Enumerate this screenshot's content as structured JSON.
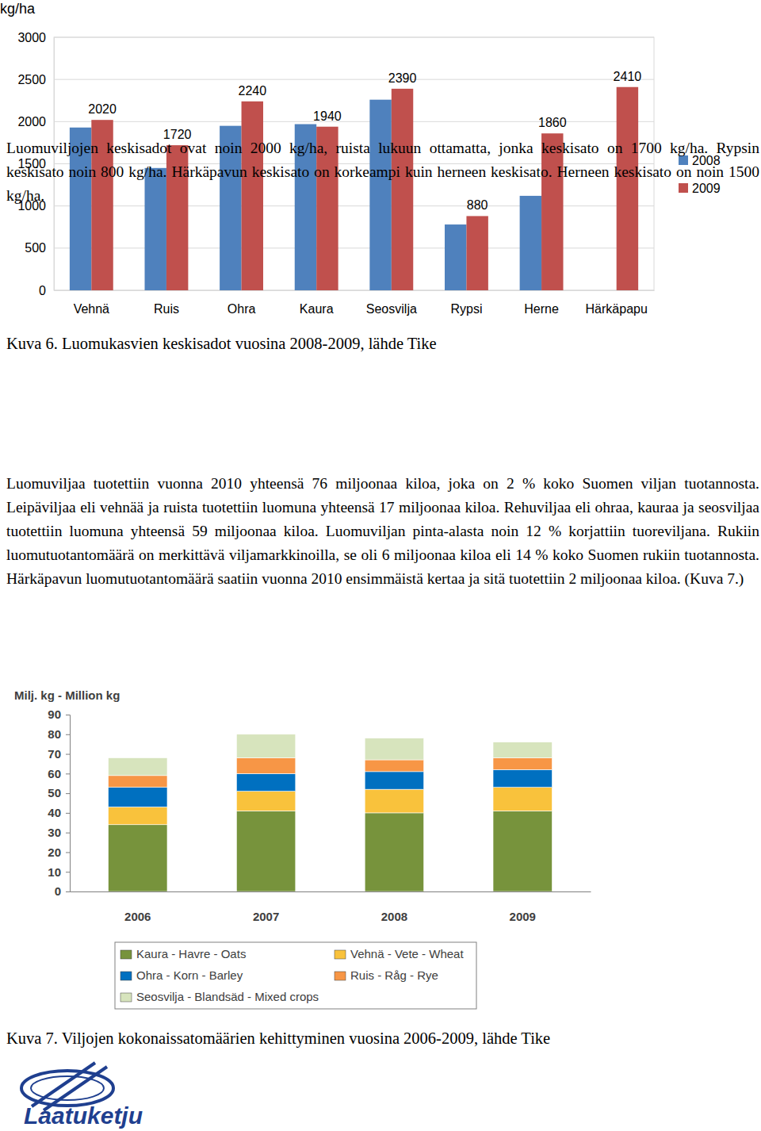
{
  "chart_data": [
    {
      "type": "bar",
      "y_label": "kg/ha",
      "categories": [
        "Vehnä",
        "Ruis",
        "Ohra",
        "Kaura",
        "Seosvilja",
        "Rypsi",
        "Herne",
        "Härkäpapu"
      ],
      "series": [
        {
          "name": "2008",
          "color": "#4f81bd",
          "values": [
            1930,
            1450,
            1950,
            1970,
            2260,
            780,
            1120,
            null
          ]
        },
        {
          "name": "2009",
          "color": "#c0504d",
          "values": [
            2020,
            1720,
            2240,
            1940,
            2390,
            880,
            1860,
            2410
          ],
          "data_labels": true
        }
      ],
      "ylim": [
        0,
        3000
      ],
      "yticks": [
        0,
        500,
        1000,
        1500,
        2000,
        2500,
        3000
      ],
      "grid": true,
      "legend": "right"
    },
    {
      "type": "bar",
      "y_label": "Milj. kg - Million kg",
      "categories": [
        "2006",
        "2007",
        "2008",
        "2009"
      ],
      "stacked": true,
      "series": [
        {
          "name": "Kaura - Havre - Oats",
          "color": "#77933c",
          "values": [
            34,
            41,
            40,
            41
          ]
        },
        {
          "name": "Vehnä - Vete - Wheat",
          "color": "#f9c23c",
          "values": [
            9,
            10,
            12,
            12
          ]
        },
        {
          "name": "Ohra - Korn - Barley",
          "color": "#0070c0",
          "values": [
            10,
            9,
            9,
            9
          ]
        },
        {
          "name": "Ruis - Råg - Rye",
          "color": "#f79646",
          "values": [
            6,
            8,
            6,
            6
          ]
        },
        {
          "name": "Seosvilja - Blandsäd - Mixed crops",
          "color": "#d7e4bd",
          "values": [
            9,
            12,
            11,
            8
          ]
        }
      ],
      "ylim": [
        0,
        90
      ],
      "yticks": [
        0,
        10,
        20,
        30,
        40,
        50,
        60,
        70,
        80,
        90
      ],
      "grid": false,
      "legend": "bottom"
    }
  ],
  "document": {
    "captions": [
      "Kuva 6. Luomukasvien keskisadot vuosina 2008-2009, lähde Tike",
      "Kuva 7. Viljojen kokonaissatomäärien kehittyminen vuosina 2006-2009, lähde Tike"
    ],
    "paragraphs": [
      "Luomuviljojen keskisadot ovat noin 2000 kg/ha, ruista lukuun ottamatta, jonka keskisato on 1700 kg/ha. Rypsin keskisato noin 800 kg/ha. Härkäpavun keskisato on korkeampi kuin herneen keskisato. Herneen keskisato on noin 1500 kg/ha.",
      "Luomuviljaa tuotettiin vuonna 2010 yhteensä 76 miljoonaa kiloa, joka on 2 % koko Suomen viljan tuotannosta. Leipäviljaa eli vehnää ja ruista tuotettiin luomuna yhteensä 17 miljoonaa kiloa. Rehuviljaa eli ohraa, kauraa ja seosviljaa tuotettiin luomuna yhteensä 59 miljoonaa kiloa. Luomuviljan pinta-alasta noin 12 % korjattiin tuoreviljana. Rukiin luomutuotantomäärä on merkittävä viljamarkkinoilla, se oli 6 miljoonaa kiloa eli 14 % koko Suomen rukiin tuotannosta. Härkäpavun luomutuotantomäärä saatiin vuonna 2010 ensimmäistä kertaa ja sitä tuotettiin 2 miljoonaa kiloa. (Kuva 7.)"
    ],
    "logo": "Laatuketju"
  }
}
